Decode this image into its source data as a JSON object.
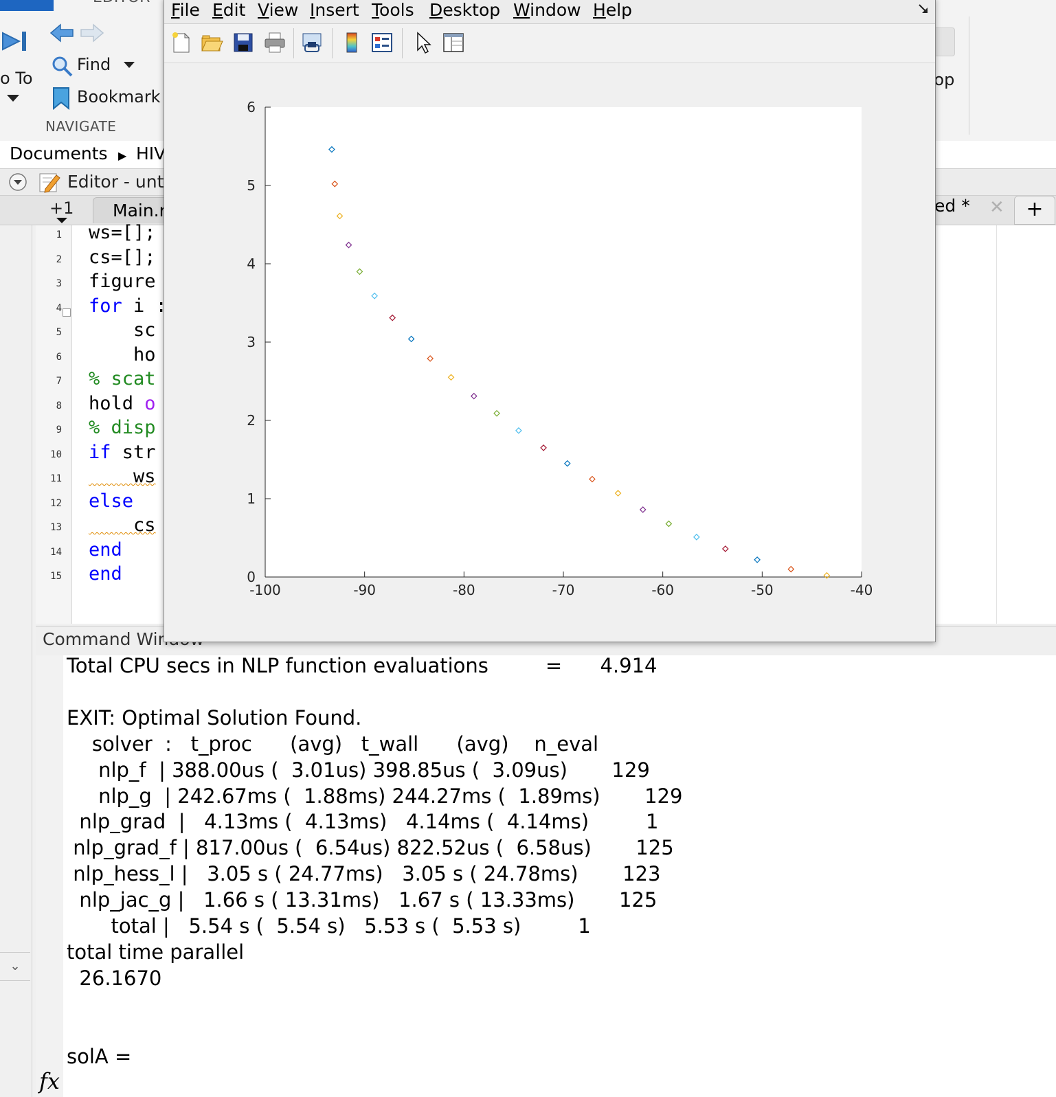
{
  "toolstrip": {
    "editor_tab_label": "EDITOR",
    "go_to_label": "o To",
    "find_label": "Find",
    "bookmark_label": "Bookmark",
    "navigate_section": "NAVIGATE",
    "right_desktop_label": "top"
  },
  "breadcrumb": {
    "root": "Documents",
    "current": "HIV"
  },
  "editor": {
    "title": "Editor - unt",
    "tabs": {
      "plus_label": "+1",
      "main_label": "Main.r",
      "untitled_label": "ed *",
      "close_glyph": "✕",
      "add_glyph": "+"
    },
    "lines": [
      {
        "n": "1",
        "text": "ws=[];"
      },
      {
        "n": "2",
        "text": "cs=[];"
      },
      {
        "n": "3",
        "text": "figure"
      },
      {
        "n": "4",
        "kw": "for",
        "rest": " i :"
      },
      {
        "n": "5",
        "text": "    sc"
      },
      {
        "n": "6",
        "text": "    ho"
      },
      {
        "n": "7",
        "comment": "% scat"
      },
      {
        "n": "8",
        "text": "hold ",
        "str": "o"
      },
      {
        "n": "9",
        "comment": "% disp"
      },
      {
        "n": "10",
        "kw": "if",
        "rest": " str"
      },
      {
        "n": "11",
        "text": "    ws"
      },
      {
        "n": "12",
        "kw": "else"
      },
      {
        "n": "13",
        "text": "    cs"
      },
      {
        "n": "14",
        "kw": "end"
      },
      {
        "n": "15",
        "kw": "end"
      }
    ]
  },
  "command_window": {
    "title": "Command Window",
    "lines": [
      "Total CPU secs in NLP function evaluations         =      4.914",
      "",
      "EXIT: Optimal Solution Found.",
      "    solver  :   t_proc      (avg)   t_wall      (avg)    n_eval",
      "     nlp_f  | 388.00us (  3.01us) 398.85us (  3.09us)       129",
      "     nlp_g  | 242.67ms (  1.88ms) 244.27ms (  1.89ms)       129",
      "  nlp_grad  |   4.13ms (  4.13ms)   4.14ms (  4.14ms)         1",
      " nlp_grad_f | 817.00us (  6.54us) 822.52us (  6.58us)       125",
      " nlp_hess_l |   3.05 s ( 24.77ms)   3.05 s ( 24.78ms)       123",
      "  nlp_jac_g |   1.66 s ( 13.31ms)   1.67 s ( 13.33ms)       125",
      "       total |   5.54 s (  5.54 s)   5.53 s (  5.53 s)         1",
      "total time parallel",
      "  26.1670",
      "",
      "",
      "solA ="
    ],
    "prompt_icon": "fx"
  },
  "figure": {
    "menu": [
      "File",
      "Edit",
      "View",
      "Insert",
      "Tools",
      "Desktop",
      "Window",
      "Help"
    ],
    "toolbar_icons": [
      "new-figure-icon",
      "open-file-icon",
      "save-icon",
      "print-icon",
      "link-plot-icon",
      "colorbar-icon",
      "legend-icon",
      "pointer-icon",
      "property-inspector-icon"
    ]
  },
  "chart_data": {
    "type": "scatter",
    "title": "",
    "xlabel": "",
    "ylabel": "",
    "xlim": [
      -100,
      -40
    ],
    "ylim": [
      0,
      6
    ],
    "x_ticks": [
      -100,
      -90,
      -80,
      -70,
      -60,
      -50,
      -40
    ],
    "y_ticks": [
      0,
      1,
      2,
      3,
      4,
      5,
      6
    ],
    "grid": false,
    "marker": "diamond-open",
    "colors": [
      "#0072bd",
      "#d95319",
      "#edb120",
      "#7e2f8e",
      "#77ac30",
      "#4dbeee",
      "#a2142f"
    ],
    "points": [
      {
        "x": -93.3,
        "y": 5.46
      },
      {
        "x": -93.0,
        "y": 5.02
      },
      {
        "x": -92.5,
        "y": 4.61
      },
      {
        "x": -91.6,
        "y": 4.24
      },
      {
        "x": -90.5,
        "y": 3.9
      },
      {
        "x": -89.0,
        "y": 3.59
      },
      {
        "x": -87.2,
        "y": 3.31
      },
      {
        "x": -85.3,
        "y": 3.04
      },
      {
        "x": -83.4,
        "y": 2.79
      },
      {
        "x": -81.3,
        "y": 2.55
      },
      {
        "x": -79.0,
        "y": 2.31
      },
      {
        "x": -76.7,
        "y": 2.09
      },
      {
        "x": -74.5,
        "y": 1.87
      },
      {
        "x": -72.0,
        "y": 1.65
      },
      {
        "x": -69.6,
        "y": 1.45
      },
      {
        "x": -67.1,
        "y": 1.25
      },
      {
        "x": -64.5,
        "y": 1.07
      },
      {
        "x": -62.0,
        "y": 0.86
      },
      {
        "x": -59.4,
        "y": 0.68
      },
      {
        "x": -56.6,
        "y": 0.51
      },
      {
        "x": -53.7,
        "y": 0.36
      },
      {
        "x": -50.5,
        "y": 0.22
      },
      {
        "x": -47.1,
        "y": 0.1
      },
      {
        "x": -43.5,
        "y": 0.02
      }
    ]
  }
}
